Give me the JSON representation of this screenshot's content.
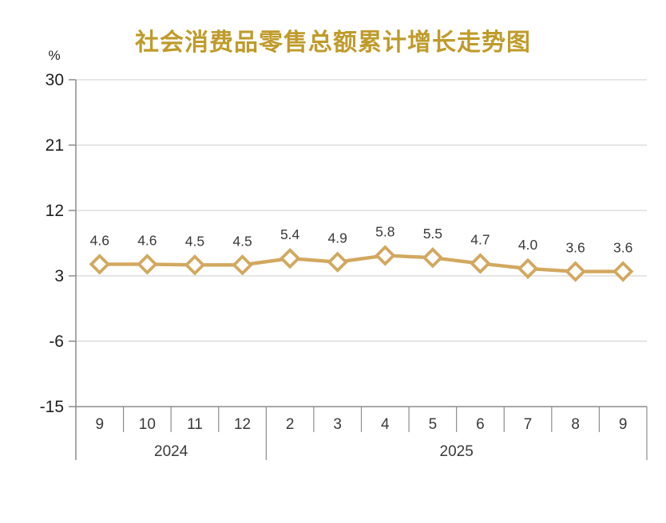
{
  "title": "社会消费品零售总额累计增长走势图",
  "chart_data": {
    "type": "line",
    "title": "社会消费品零售总额累计增长走势图",
    "ylabel": "%",
    "xlabel": "",
    "x": [
      "9",
      "10",
      "11",
      "12",
      "2",
      "3",
      "4",
      "5",
      "6",
      "7",
      "8",
      "9"
    ],
    "year_groups": [
      {
        "label": "2024",
        "span": 4
      },
      {
        "label": "2025",
        "span": 8
      }
    ],
    "values": [
      4.6,
      4.6,
      4.5,
      4.5,
      5.4,
      4.9,
      5.8,
      5.5,
      4.7,
      4.0,
      3.6,
      3.6
    ],
    "point_labels": [
      "4.6",
      "4.6",
      "4.5",
      "4.5",
      "5.4",
      "4.9",
      "5.8",
      "5.5",
      "4.7",
      "4.0",
      "3.6",
      "3.6"
    ],
    "y_ticks": [
      30,
      21,
      12,
      3,
      -6,
      -15
    ],
    "ylim": [
      -15,
      30
    ],
    "grid": true,
    "legend_position": "none",
    "marker": "diamond-hollow"
  },
  "colors": {
    "title": "#BF9B2A",
    "line": "#D2A85F",
    "marker_fill": "#FFFFFF",
    "grid": "#D6D6D6",
    "axis": "#8C8C8C",
    "tick_text": "#1F1F1F",
    "label_text": "#3A3A3A",
    "background": "#FFFFFF"
  }
}
